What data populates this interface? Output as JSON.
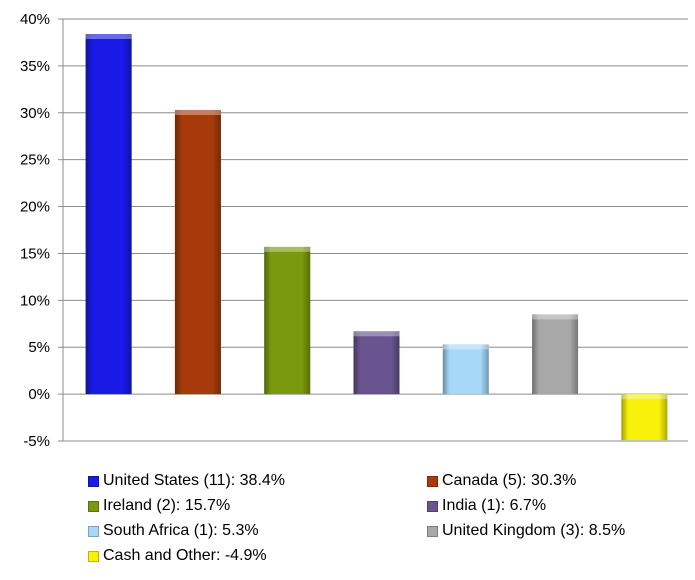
{
  "chart_data": {
    "type": "bar",
    "categories": [
      "United States (11)",
      "Canada (5)",
      "Ireland (2)",
      "India (1)",
      "South Africa (1)",
      "United Kingdom (3)",
      "Cash and Other"
    ],
    "values": [
      38.4,
      30.3,
      15.7,
      6.7,
      5.3,
      8.5,
      -4.9
    ],
    "colors": [
      "#1a1ae6",
      "#a63a0a",
      "#7a9a0e",
      "#6a5490",
      "#a8d8f8",
      "#a8a8a8",
      "#f8f20a"
    ],
    "ylim": [
      -5,
      40
    ],
    "yticks": [
      "40%",
      "35%",
      "30%",
      "25%",
      "20%",
      "15%",
      "10%",
      "5%",
      "0%",
      "-5%"
    ],
    "grid": true,
    "legend_position": "bottom",
    "legend": [
      "United States (11): 38.4%",
      "Canada (5): 30.3%",
      "Ireland (2): 15.7%",
      "India (1): 6.7%",
      "South Africa (1): 5.3%",
      "United Kingdom (3): 8.5%",
      "Cash and Other: -4.9%"
    ]
  }
}
